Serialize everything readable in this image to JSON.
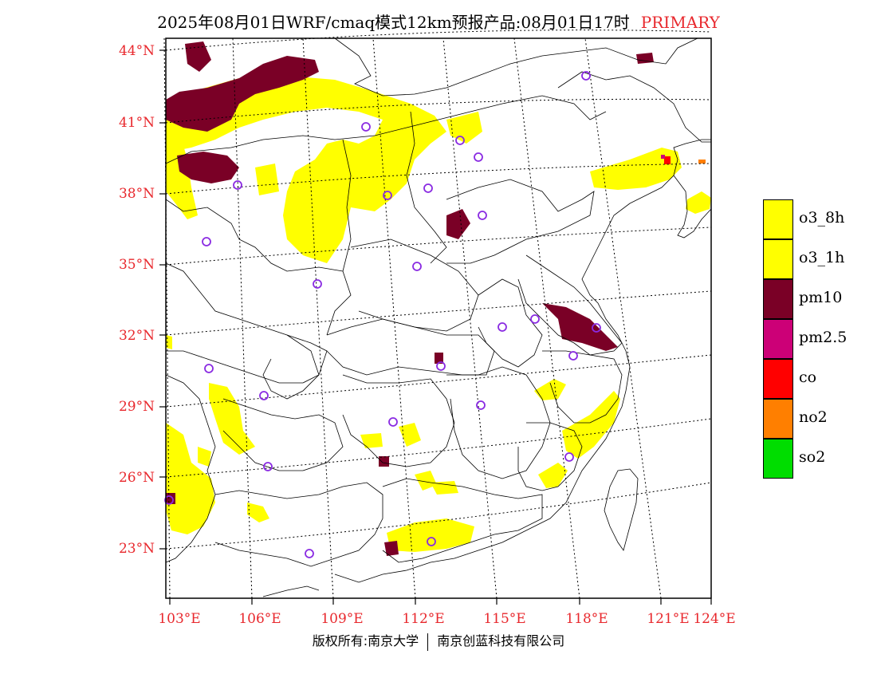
{
  "header": {
    "title": "2025年08月01日WRF/cmaq模式12km预报产品:08月01日17时",
    "mode": "PRIMARY"
  },
  "map": {
    "lat_labels": [
      "44°N",
      "41°N",
      "38°N",
      "35°N",
      "32°N",
      "29°N",
      "26°N",
      "23°N"
    ],
    "lon_labels": [
      "103°E",
      "106°E",
      "109°E",
      "112°E",
      "115°E",
      "118°E",
      "121°E",
      "124°E"
    ]
  },
  "legend": {
    "items": [
      {
        "label": "o3_8h",
        "color": "#ffff00"
      },
      {
        "label": "o3_1h",
        "color": "#ffff00"
      },
      {
        "label": "pm10",
        "color": "#7a0026"
      },
      {
        "label": "pm2.5",
        "color": "#cc0077"
      },
      {
        "label": "co",
        "color": "#ff0000"
      },
      {
        "label": "no2",
        "color": "#ff7f00"
      },
      {
        "label": "so2",
        "color": "#00dd00"
      }
    ]
  },
  "footer": {
    "left": "版权所有:南京大学",
    "right": "南京创蓝科技有限公司"
  },
  "colors": {
    "axis_label": "#e8282d",
    "station_marker": "#8a2be2"
  }
}
